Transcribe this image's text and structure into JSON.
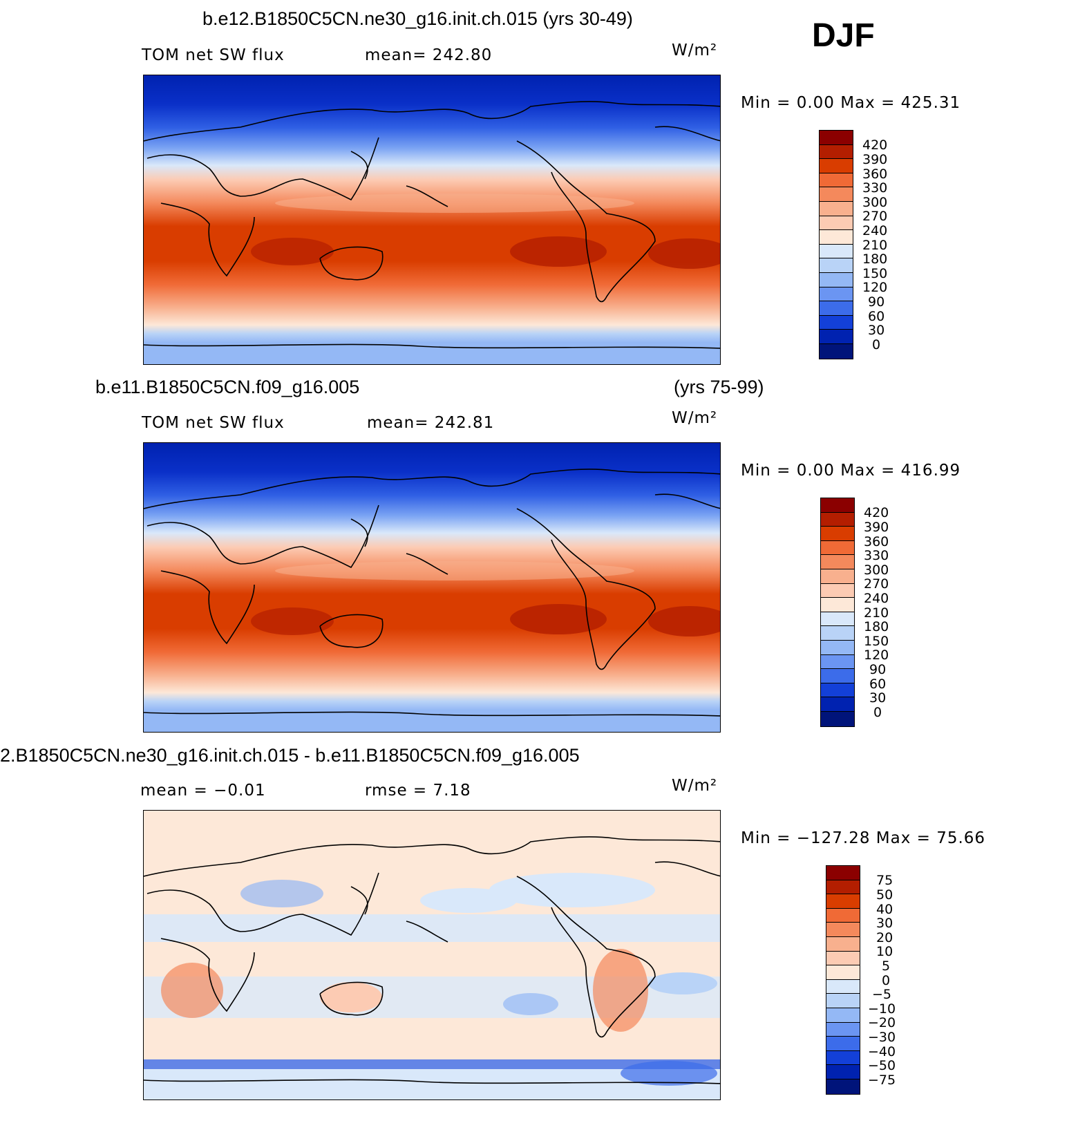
{
  "season": "DJF",
  "panels": [
    {
      "id": "test",
      "header": "b.e12.B1850C5CN.ne30_g16.init.ch.015 (yrs 30-49)",
      "header_right": "",
      "variable": "TOM  net  SW  flux",
      "stat": "mean=  242.80",
      "units": "W/m²",
      "minmax": "Min  =     0.00  Max  =  425.31",
      "colorbar": {
        "labels": [
          "420",
          "390",
          "360",
          "330",
          "300",
          "270",
          "240",
          "210",
          "180",
          "150",
          "120",
          "90",
          "60",
          "30",
          "0"
        ],
        "colors": [
          "#8b0000",
          "#b31e00",
          "#d93d00",
          "#f06a36",
          "#f4895c",
          "#f8b08e",
          "#fccbb3",
          "#fde8d8",
          "#d9e8fa",
          "#b9d3f7",
          "#94b8f5",
          "#6b95f2",
          "#3c6cea",
          "#1340d8",
          "#0022b0",
          "#00147a"
        ]
      }
    },
    {
      "id": "control",
      "header": "b.e11.B1850C5CN.f09_g16.005",
      "header_right": "(yrs 75-99)",
      "variable": "TOM  net  SW  flux",
      "stat": "mean=  242.81",
      "units": "W/m²",
      "minmax": "Min  =     0.00  Max  =  416.99",
      "colorbar": {
        "labels": [
          "420",
          "390",
          "360",
          "330",
          "300",
          "270",
          "240",
          "210",
          "180",
          "150",
          "120",
          "90",
          "60",
          "30",
          "0"
        ],
        "colors": [
          "#8b0000",
          "#b31e00",
          "#d93d00",
          "#f06a36",
          "#f4895c",
          "#f8b08e",
          "#fccbb3",
          "#fde8d8",
          "#d9e8fa",
          "#b9d3f7",
          "#94b8f5",
          "#6b95f2",
          "#3c6cea",
          "#1340d8",
          "#0022b0",
          "#00147a"
        ]
      }
    },
    {
      "id": "difference",
      "header": "2.B1850C5CN.ne30_g16.init.ch.015 - b.e11.B1850C5CN.f09_g16.005",
      "header_right": "",
      "variable": "mean  =    −0.01",
      "stat": "rmse  =     7.18",
      "units": "W/m²",
      "minmax": "Min  =  −127.28  Max  =    75.66",
      "colorbar": {
        "labels": [
          "75",
          "50",
          "40",
          "30",
          "20",
          "10",
          "5",
          "0",
          "−5",
          "−10",
          "−20",
          "−30",
          "−40",
          "−50",
          "−75"
        ],
        "colors": [
          "#8b0000",
          "#b31e00",
          "#d93d00",
          "#f06a36",
          "#f4895c",
          "#f8b08e",
          "#fccbb3",
          "#fde8d8",
          "#d9e8fa",
          "#b9d3f7",
          "#94b8f5",
          "#6b95f2",
          "#3c6cea",
          "#1340d8",
          "#0022b0",
          "#00147a"
        ]
      }
    }
  ]
}
